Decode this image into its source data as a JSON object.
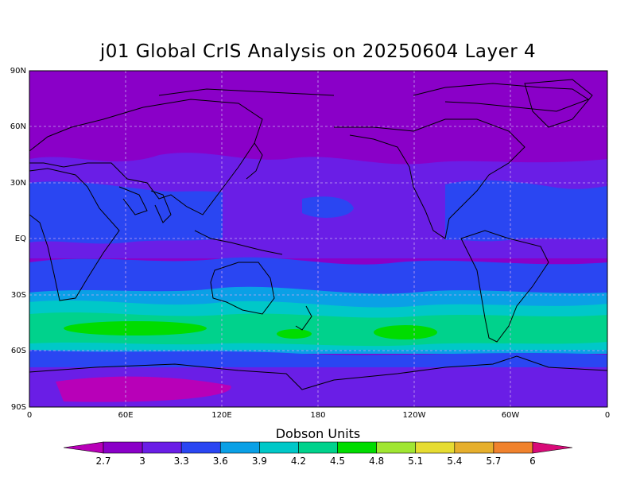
{
  "title": "j01 Global CrIS Analysis on 20250604 Layer 4",
  "lat_ticks": [
    "90N",
    "60N",
    "30N",
    "EQ",
    "30S",
    "60S",
    "90S"
  ],
  "lon_ticks": [
    "0",
    "60E",
    "120E",
    "180",
    "120W",
    "60W",
    "0"
  ],
  "colorbar": {
    "title": "Dobson Units",
    "levels": [
      "2.7",
      "3",
      "3.3",
      "3.6",
      "3.9",
      "4.2",
      "4.5",
      "4.8",
      "5.1",
      "5.4",
      "5.7",
      "6"
    ],
    "colors": [
      "#8a00c8",
      "#6a1ee6",
      "#2a46f2",
      "#0aa0e6",
      "#00c8c8",
      "#00d28c",
      "#00dc00",
      "#a0e632",
      "#e6dc32",
      "#e6af2d",
      "#f0822d",
      "#f00a0a",
      "#d80a78"
    ],
    "below_color": "#b800b8",
    "above_color": "#d80a78"
  },
  "colors": {
    "background_field": "#8a00c8",
    "coastline": "#000000",
    "grid": "#c8a8f0"
  }
}
